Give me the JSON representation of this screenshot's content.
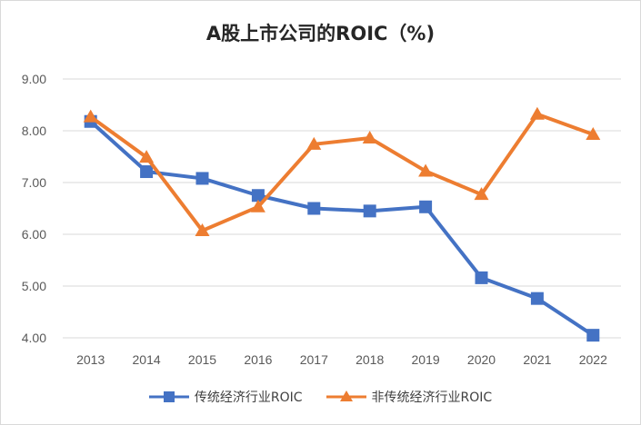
{
  "chart_data": {
    "type": "line",
    "title": "A股上市公司的ROIC（%)",
    "x": [
      "2013",
      "2014",
      "2015",
      "2016",
      "2017",
      "2018",
      "2019",
      "2020",
      "2021",
      "2022"
    ],
    "yticks": [
      "4.00",
      "5.00",
      "6.00",
      "7.00",
      "8.00",
      "9.00"
    ],
    "ylim": [
      4,
      9
    ],
    "grid": true,
    "legend_position": "bottom",
    "series": [
      {
        "name": "传统经济行业ROIC",
        "color": "#4472C4",
        "marker": "square",
        "values": [
          8.18,
          7.21,
          7.08,
          6.75,
          6.5,
          6.45,
          6.53,
          5.16,
          4.76,
          4.05
        ]
      },
      {
        "name": "非传统经济行业ROIC",
        "color": "#ED7D31",
        "marker": "triangle",
        "values": [
          8.27,
          7.49,
          6.07,
          6.53,
          7.74,
          7.86,
          7.22,
          6.77,
          8.32,
          7.93
        ]
      }
    ]
  }
}
